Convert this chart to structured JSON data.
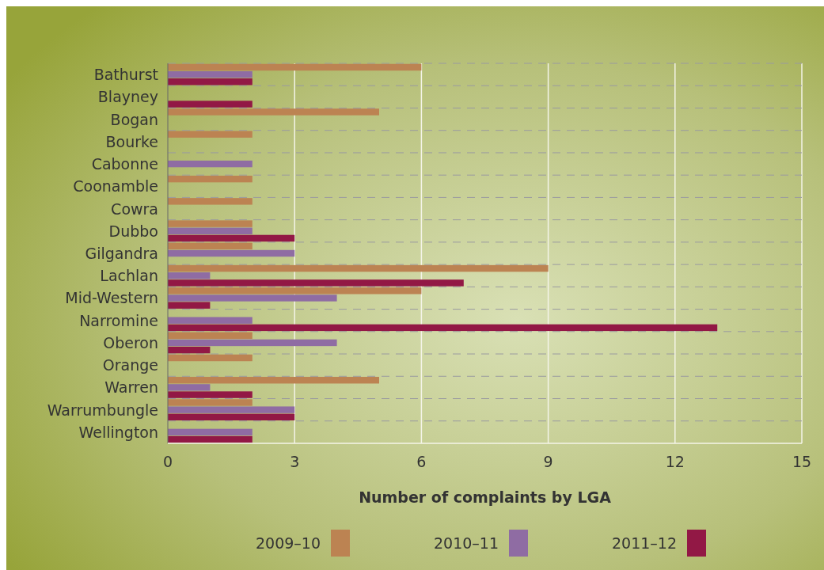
{
  "chart_data": {
    "type": "bar",
    "orientation": "horizontal",
    "xlabel": "Number of complaints by LGA",
    "categories": [
      "Bathurst",
      "Blayney",
      "Bogan",
      "Bourke",
      "Cabonne",
      "Coonamble",
      "Cowra",
      "Dubbo",
      "Gilgandra",
      "Lachlan",
      "Mid-Western",
      "Narromine",
      "Oberon",
      "Orange",
      "Warren",
      "Warrumbungle",
      "Wellington"
    ],
    "series": [
      {
        "name": "2009–10",
        "color": "#bc8352",
        "values": [
          6,
          0,
          5,
          2,
          0,
          2,
          2,
          2,
          2,
          9,
          6,
          0,
          2,
          2,
          5,
          2,
          0
        ]
      },
      {
        "name": "2010–11",
        "color": "#8f6ca3",
        "values": [
          2,
          0,
          0,
          0,
          2,
          0,
          0,
          2,
          3,
          1,
          4,
          2,
          4,
          0,
          1,
          3,
          2
        ]
      },
      {
        "name": "2011–12",
        "color": "#921845",
        "values": [
          2,
          2,
          0,
          0,
          0,
          0,
          0,
          3,
          0,
          7,
          1,
          13,
          1,
          0,
          2,
          3,
          2
        ]
      }
    ],
    "xlim": [
      0,
      15
    ],
    "xticks": [
      0,
      3,
      6,
      9,
      12,
      15
    ],
    "grid": true,
    "legend": "bottom"
  }
}
